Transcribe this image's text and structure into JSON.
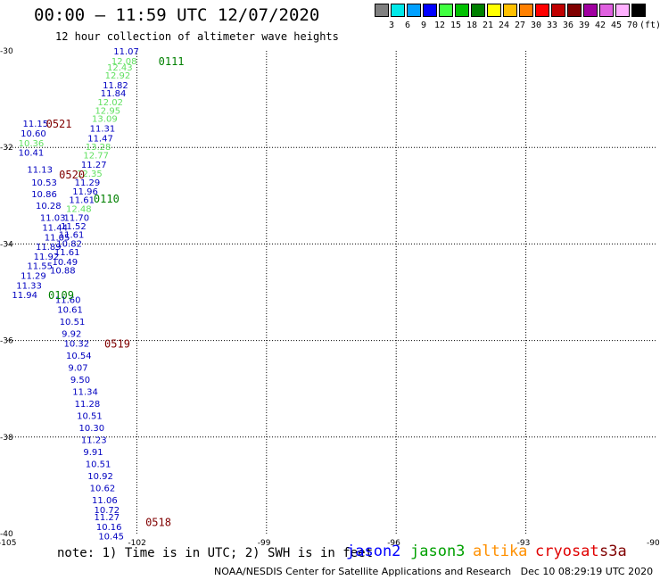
{
  "header": {
    "title": "00:00 – 11:59 UTC 12/07/2020",
    "subtitle": "12 hour collection of altimeter wave heights"
  },
  "scale": {
    "labels": [
      "3",
      "6",
      "9",
      "12",
      "15",
      "18",
      "21",
      "24",
      "27",
      "30",
      "33",
      "36",
      "39",
      "42",
      "45",
      "70"
    ],
    "unit": "(ft)",
    "colors": [
      "#808080",
      "#00e8e8",
      "#00a0ff",
      "#0000ff",
      "#40ff40",
      "#00c000",
      "#008000",
      "#ffff00",
      "#ffc000",
      "#ff8000",
      "#ff0000",
      "#c00000",
      "#800000",
      "#a000a0",
      "#e060e0",
      "#ffb0ff",
      "#000000"
    ]
  },
  "map": {
    "lon_ticks": [
      "-105",
      "-102",
      "-99",
      "-96",
      "-93",
      "-90"
    ],
    "lat_ticks": [
      "-30",
      "-32",
      "-34",
      "-36",
      "-38",
      "-40"
    ],
    "time_labels": [
      {
        "text": "0111",
        "lon": -101.5,
        "lat": -30.2,
        "color": "#008000"
      },
      {
        "text": "0521",
        "lon": -104.1,
        "lat": -31.5,
        "color": "#800000"
      },
      {
        "text": "0520",
        "lon": -103.8,
        "lat": -32.55,
        "color": "#800000"
      },
      {
        "text": "0110",
        "lon": -103.0,
        "lat": -33.05,
        "color": "#008000"
      },
      {
        "text": "0109",
        "lon": -104.05,
        "lat": -35.05,
        "color": "#008000"
      },
      {
        "text": "0519",
        "lon": -102.75,
        "lat": -36.05,
        "color": "#800000"
      },
      {
        "text": "0518",
        "lon": -101.8,
        "lat": -39.75,
        "color": "#800000"
      }
    ],
    "tracks": [
      {
        "satellite": "jason3",
        "color": "#008000",
        "points": [
          {
            "lon": -102.25,
            "lat": -30.0,
            "v": "11.07",
            "c": "#0000c0"
          },
          {
            "lon": -102.3,
            "lat": -30.2,
            "v": "12.08",
            "c": "#60e060"
          },
          {
            "lon": -102.4,
            "lat": -30.33,
            "v": "12.43",
            "c": "#60e060"
          },
          {
            "lon": -102.45,
            "lat": -30.5,
            "v": "12.92",
            "c": "#60e060"
          },
          {
            "lon": -102.5,
            "lat": -30.7,
            "v": "11.82",
            "c": "#0000c0"
          },
          {
            "lon": -102.55,
            "lat": -30.87,
            "v": "11.84",
            "c": "#0000c0"
          },
          {
            "lon": -102.62,
            "lat": -31.05,
            "v": "12.02",
            "c": "#60e060"
          },
          {
            "lon": -102.68,
            "lat": -31.23,
            "v": "12.95",
            "c": "#60e060"
          },
          {
            "lon": -102.75,
            "lat": -31.4,
            "v": "13.09",
            "c": "#60e060"
          },
          {
            "lon": -102.8,
            "lat": -31.6,
            "v": "11.31",
            "c": "#0000c0"
          },
          {
            "lon": -102.85,
            "lat": -31.8,
            "v": "11.47",
            "c": "#0000c0"
          },
          {
            "lon": -102.9,
            "lat": -31.98,
            "v": "13.28",
            "c": "#60e060"
          },
          {
            "lon": -102.95,
            "lat": -32.15,
            "v": "12.77",
            "c": "#60e060"
          },
          {
            "lon": -103.0,
            "lat": -32.35,
            "v": "11.27",
            "c": "#0000c0"
          },
          {
            "lon": -103.1,
            "lat": -32.53,
            "v": "12.35",
            "c": "#60e060"
          },
          {
            "lon": -103.15,
            "lat": -32.72,
            "v": "11.29",
            "c": "#0000c0"
          },
          {
            "lon": -103.2,
            "lat": -32.9,
            "v": "11.96",
            "c": "#0000c0"
          },
          {
            "lon": -103.28,
            "lat": -33.08,
            "v": "11.61",
            "c": "#0000c0"
          },
          {
            "lon": -103.35,
            "lat": -33.26,
            "v": "12.48",
            "c": "#60e060"
          },
          {
            "lon": -103.4,
            "lat": -33.45,
            "v": "11.70",
            "c": "#0000c0"
          },
          {
            "lon": -103.47,
            "lat": -33.62,
            "v": "11.52",
            "c": "#0000c0"
          },
          {
            "lon": -103.52,
            "lat": -33.8,
            "v": "11.61",
            "c": "#0000c0"
          },
          {
            "lon": -103.57,
            "lat": -33.98,
            "v": "10.82",
            "c": "#0000c0"
          },
          {
            "lon": -103.62,
            "lat": -34.16,
            "v": "11.61",
            "c": "#0000c0"
          },
          {
            "lon": -103.67,
            "lat": -34.36,
            "v": "10.49",
            "c": "#0000c0"
          },
          {
            "lon": -103.72,
            "lat": -34.54,
            "v": "10.88",
            "c": "#0000c0"
          }
        ]
      },
      {
        "satellite": "jason2",
        "color": "#0000c0",
        "points": [
          {
            "lon": -104.35,
            "lat": -31.5,
            "v": "11.15",
            "c": "#0000c0"
          },
          {
            "lon": -104.4,
            "lat": -31.7,
            "v": "10.60",
            "c": "#0000c0"
          },
          {
            "lon": -104.45,
            "lat": -31.9,
            "v": "10.36",
            "c": "#60e060"
          },
          {
            "lon": -104.45,
            "lat": -32.1,
            "v": "10.41",
            "c": "#0000c0"
          },
          {
            "lon": -104.25,
            "lat": -32.45,
            "v": "11.13",
            "c": "#0000c0"
          },
          {
            "lon": -104.15,
            "lat": -32.72,
            "v": "10.53",
            "c": "#0000c0"
          },
          {
            "lon": -104.15,
            "lat": -32.96,
            "v": "10.86",
            "c": "#0000c0"
          },
          {
            "lon": -104.05,
            "lat": -33.2,
            "v": "10.28",
            "c": "#0000c0"
          },
          {
            "lon": -103.95,
            "lat": -33.45,
            "v": "11.03",
            "c": "#0000c0"
          },
          {
            "lon": -103.9,
            "lat": -33.65,
            "v": "11.44",
            "c": "#0000c0"
          },
          {
            "lon": -103.85,
            "lat": -33.85,
            "v": "11.05",
            "c": "#0000c0"
          },
          {
            "lon": -104.05,
            "lat": -34.05,
            "v": "11.89",
            "c": "#0000c0"
          },
          {
            "lon": -104.1,
            "lat": -34.25,
            "v": "11.92",
            "c": "#0000c0"
          },
          {
            "lon": -104.25,
            "lat": -34.45,
            "v": "11.55",
            "c": "#0000c0"
          },
          {
            "lon": -104.4,
            "lat": -34.65,
            "v": "11.29",
            "c": "#0000c0"
          },
          {
            "lon": -104.5,
            "lat": -34.85,
            "v": "11.33",
            "c": "#0000c0"
          },
          {
            "lon": -104.6,
            "lat": -35.05,
            "v": "11.94",
            "c": "#0000c0"
          }
        ]
      },
      {
        "satellite": "cryosat",
        "color": "#0000c0",
        "points": [
          {
            "lon": -103.6,
            "lat": -35.15,
            "v": "11.60",
            "c": "#0000c0"
          },
          {
            "lon": -103.55,
            "lat": -35.35,
            "v": "10.61",
            "c": "#0000c0"
          },
          {
            "lon": -103.5,
            "lat": -35.6,
            "v": "10.51",
            "c": "#0000c0"
          },
          {
            "lon": -103.45,
            "lat": -35.85,
            "v": "9.92",
            "c": "#0000c0"
          },
          {
            "lon": -103.4,
            "lat": -36.05,
            "v": "10.32",
            "c": "#0000c0"
          },
          {
            "lon": -103.35,
            "lat": -36.3,
            "v": "10.54",
            "c": "#0000c0"
          },
          {
            "lon": -103.3,
            "lat": -36.55,
            "v": "9.07",
            "c": "#0000c0"
          },
          {
            "lon": -103.25,
            "lat": -36.8,
            "v": "9.50",
            "c": "#0000c0"
          },
          {
            "lon": -103.2,
            "lat": -37.05,
            "v": "11.34",
            "c": "#0000c0"
          },
          {
            "lon": -103.15,
            "lat": -37.3,
            "v": "11.28",
            "c": "#0000c0"
          },
          {
            "lon": -103.1,
            "lat": -37.55,
            "v": "10.51",
            "c": "#0000c0"
          },
          {
            "lon": -103.05,
            "lat": -37.8,
            "v": "10.30",
            "c": "#0000c0"
          },
          {
            "lon": -103.0,
            "lat": -38.05,
            "v": "11.23",
            "c": "#0000c0"
          },
          {
            "lon": -102.95,
            "lat": -38.3,
            "v": "9.91",
            "c": "#0000c0"
          },
          {
            "lon": -102.9,
            "lat": -38.55,
            "v": "10.51",
            "c": "#0000c0"
          },
          {
            "lon": -102.85,
            "lat": -38.8,
            "v": "10.92",
            "c": "#0000c0"
          },
          {
            "lon": -102.8,
            "lat": -39.05,
            "v": "10.62",
            "c": "#0000c0"
          },
          {
            "lon": -102.75,
            "lat": -39.3,
            "v": "11.06",
            "c": "#0000c0"
          },
          {
            "lon": -102.7,
            "lat": -39.5,
            "v": "10.72",
            "c": "#0000c0"
          },
          {
            "lon": -102.7,
            "lat": -39.65,
            "v": "11.27",
            "c": "#0000c0"
          },
          {
            "lon": -102.65,
            "lat": -39.85,
            "v": "10.16",
            "c": "#0000c0"
          },
          {
            "lon": -102.6,
            "lat": -40.05,
            "v": "10.45",
            "c": "#0000c0"
          }
        ]
      }
    ]
  },
  "footer": {
    "note": "note: 1) Time is in UTC; 2) SWH is in feet",
    "satellites": [
      {
        "name": "jason2",
        "color": "#0000ff"
      },
      {
        "name": "jason3",
        "color": "#00a000"
      },
      {
        "name": "altika",
        "color": "#ff9000"
      },
      {
        "name": "cryosat",
        "color": "#e00000"
      },
      {
        "name": "s3a",
        "color": "#800000"
      }
    ],
    "credit": "NOAA/NESDIS Center for Satellite Applications and Research   Dec 10 08:29:19 UTC 2020"
  }
}
